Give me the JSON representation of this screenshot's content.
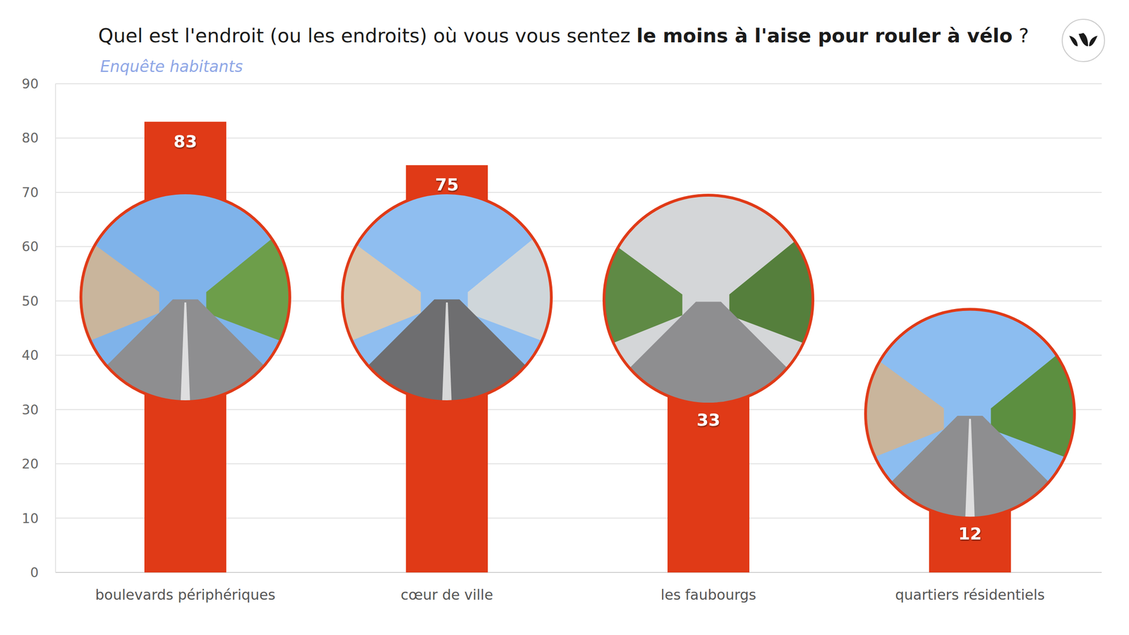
{
  "chart_data": {
    "type": "bar",
    "title": "Quel est l'endroit (ou les endroits) où vous vous sentez le moins à l'aise pour rouler à vélo ?",
    "title_emphasis": "le moins à l'aise pour rouler à vélo",
    "subtitle": "Enquête habitants",
    "categories": [
      "boulevards périphériques",
      "cœur de ville",
      "les faubourgs",
      "quartiers résidentiels"
    ],
    "values": [
      83,
      75,
      33,
      12
    ],
    "color": "#e03a17",
    "ylim": [
      0,
      90
    ],
    "yticks": [
      0,
      10,
      20,
      30,
      40,
      50,
      60,
      70,
      80,
      90
    ],
    "grid": true,
    "data_labels": true
  }
}
